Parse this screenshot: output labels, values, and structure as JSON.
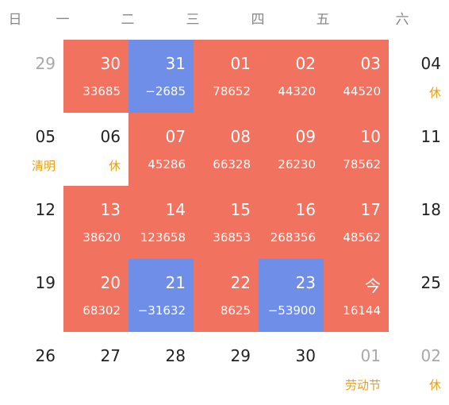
{
  "colors": {
    "gain": "#F27260",
    "loss": "#6F8EE8",
    "holiday_label": "#E3A020",
    "muted_day": "#a8a8a8"
  },
  "weekdays": [
    "日",
    "一",
    "二",
    "三",
    "四",
    "五",
    "六"
  ],
  "weeks": [
    [
      {
        "day": "29",
        "sub": "",
        "style": "muted"
      },
      {
        "day": "30",
        "sub": "33685",
        "style": "red"
      },
      {
        "day": "31",
        "sub": "−2685",
        "style": "blue"
      },
      {
        "day": "01",
        "sub": "78652",
        "style": "red"
      },
      {
        "day": "02",
        "sub": "44320",
        "style": "red"
      },
      {
        "day": "03",
        "sub": "44520",
        "style": "red"
      },
      {
        "day": "04",
        "sub": "休",
        "style": "holiday"
      }
    ],
    [
      {
        "day": "05",
        "sub": "清明",
        "style": "holiday"
      },
      {
        "day": "06",
        "sub": "休",
        "style": "holiday"
      },
      {
        "day": "07",
        "sub": "45286",
        "style": "red"
      },
      {
        "day": "08",
        "sub": "66328",
        "style": "red"
      },
      {
        "day": "09",
        "sub": "26230",
        "style": "red"
      },
      {
        "day": "10",
        "sub": "78562",
        "style": "red"
      },
      {
        "day": "11",
        "sub": "",
        "style": "plain"
      }
    ],
    [
      {
        "day": "12",
        "sub": "",
        "style": "plain"
      },
      {
        "day": "13",
        "sub": "38620",
        "style": "red"
      },
      {
        "day": "14",
        "sub": "123658",
        "style": "red"
      },
      {
        "day": "15",
        "sub": "36853",
        "style": "red"
      },
      {
        "day": "16",
        "sub": "268356",
        "style": "red"
      },
      {
        "day": "17",
        "sub": "48562",
        "style": "red"
      },
      {
        "day": "18",
        "sub": "",
        "style": "plain"
      }
    ],
    [
      {
        "day": "19",
        "sub": "",
        "style": "plain"
      },
      {
        "day": "20",
        "sub": "68302",
        "style": "red"
      },
      {
        "day": "21",
        "sub": "−31632",
        "style": "blue"
      },
      {
        "day": "22",
        "sub": "8625",
        "style": "red"
      },
      {
        "day": "23",
        "sub": "−53900",
        "style": "blue"
      },
      {
        "day": "今",
        "sub": "16144",
        "style": "red today"
      },
      {
        "day": "25",
        "sub": "",
        "style": "plain"
      }
    ],
    [
      {
        "day": "26",
        "sub": "",
        "style": "plain"
      },
      {
        "day": "27",
        "sub": "",
        "style": "plain"
      },
      {
        "day": "28",
        "sub": "",
        "style": "plain"
      },
      {
        "day": "29",
        "sub": "",
        "style": "plain"
      },
      {
        "day": "30",
        "sub": "",
        "style": "plain"
      },
      {
        "day": "01",
        "sub": "劳动节",
        "style": "muted holiday"
      },
      {
        "day": "02",
        "sub": "休",
        "style": "muted holiday"
      }
    ]
  ]
}
